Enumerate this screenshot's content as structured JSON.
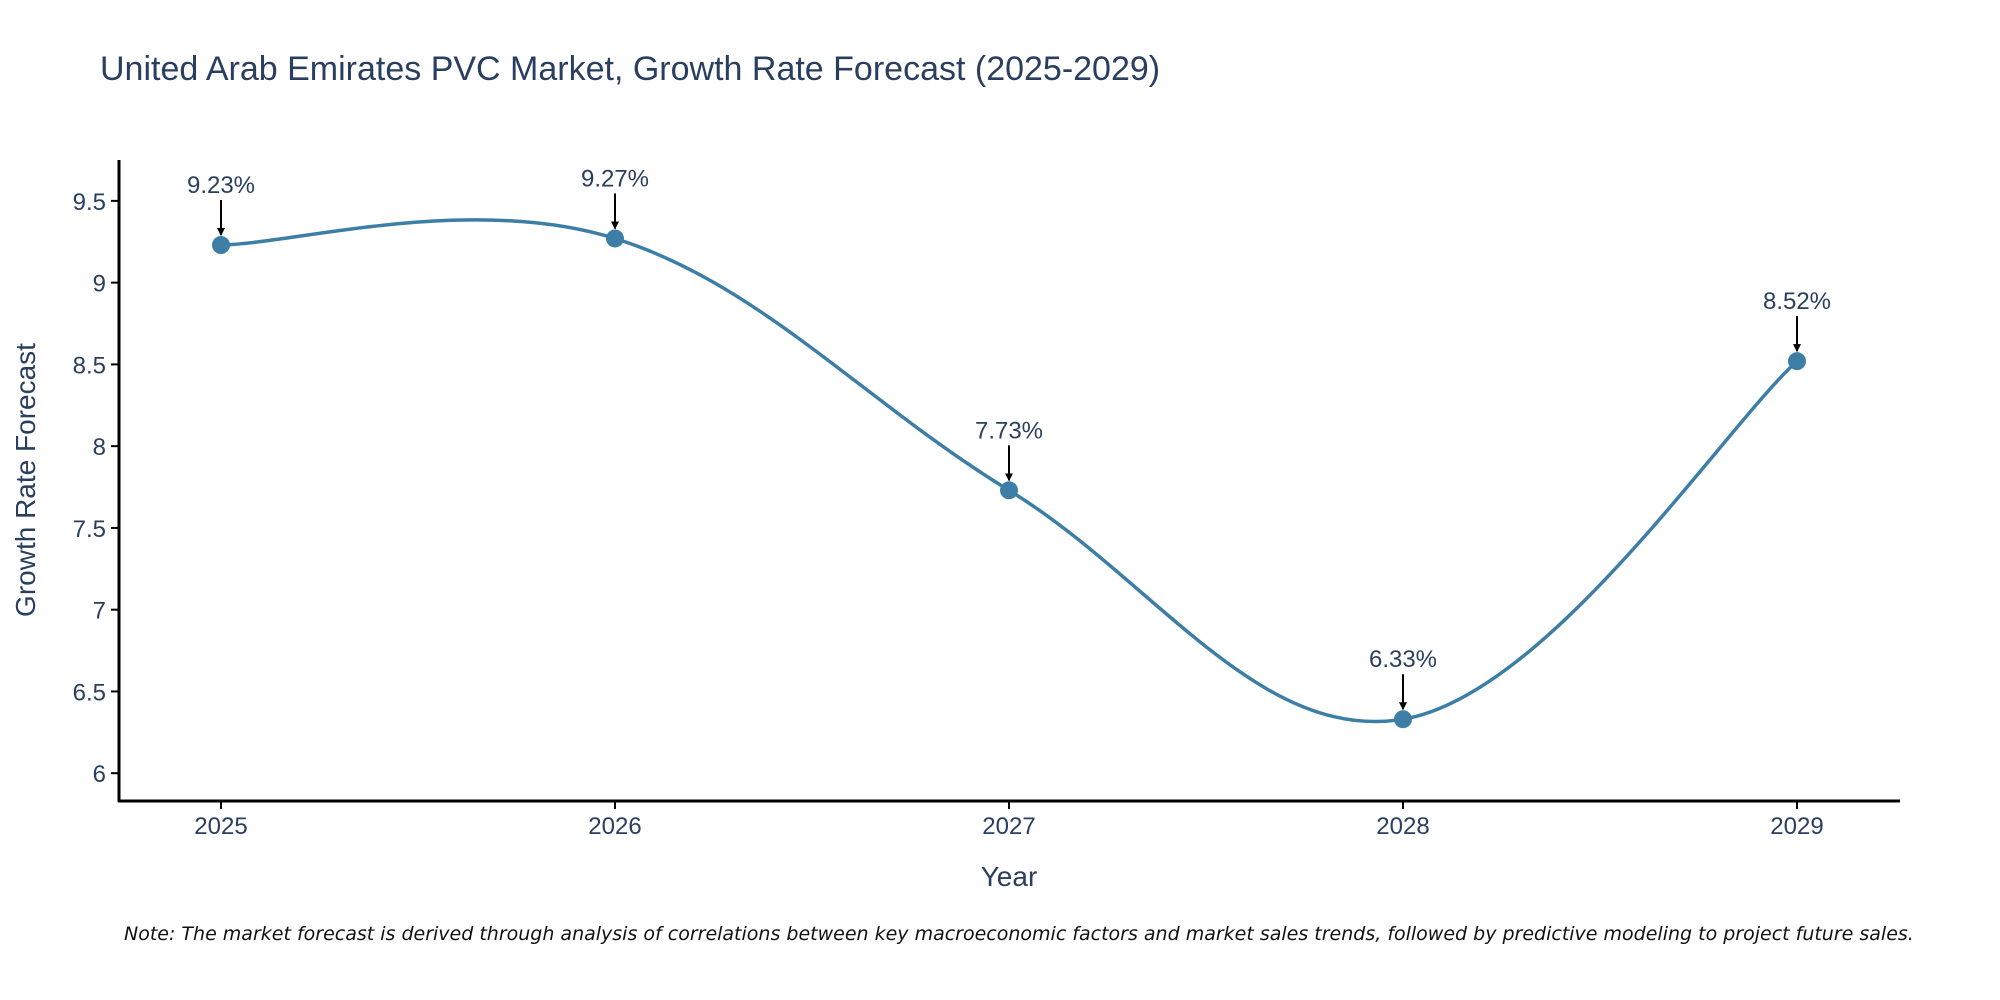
{
  "chart_data": {
    "type": "line",
    "title": "United Arab Emirates PVC Market, Growth Rate Forecast (2025-2029)",
    "xlabel": "Year",
    "ylabel": "Growth Rate Forecast",
    "categories": [
      "2025",
      "2026",
      "2027",
      "2028",
      "2029"
    ],
    "values": [
      9.23,
      9.27,
      7.73,
      6.33,
      8.52
    ],
    "data_labels": [
      "9.23%",
      "9.27%",
      "7.73%",
      "6.33%",
      "8.52%"
    ],
    "yticks": [
      6,
      6.5,
      7,
      7.5,
      8,
      8.5,
      9,
      9.5
    ],
    "ytick_labels": [
      "6",
      "6.5",
      "7",
      "7.5",
      "8",
      "8.5",
      "9",
      "9.5"
    ],
    "ylim": [
      5.83,
      9.75
    ],
    "grid": false,
    "line_shape": "spline",
    "line_color": "#3d7ea6",
    "marker_color": "#3d7ea6",
    "note": "Note: The market forecast is derived through analysis of correlations between key macroeconomic factors and market sales trends, followed by predictive modeling to project future sales."
  }
}
